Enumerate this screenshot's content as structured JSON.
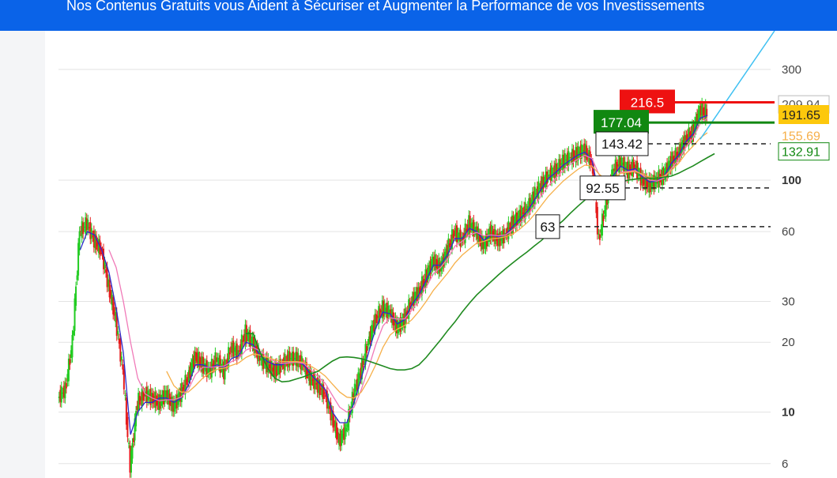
{
  "banner": {
    "text": "Nos Contenus Gratuits vous Aident à Sécuriser et Augmenter la Performance de vos Investissements"
  },
  "colors": {
    "banner": "#0a63e8",
    "up_candle": "#22cc22",
    "down_candle": "#e51b1b",
    "ma_fast": "#2b2bcc",
    "ma_pink": "#f07ab8",
    "ma_orange": "#f6b04a",
    "ma_green": "#1f8a1f",
    "trend_line": "#3ec0f2",
    "resistance": "#ee1111",
    "support": "#118811"
  },
  "chart_data": {
    "type": "line",
    "scale": "log",
    "ylim": [
      5.2,
      440
    ],
    "yticks": [
      {
        "value": 300,
        "label": "300",
        "bold": false
      },
      {
        "value": 100,
        "label": "100",
        "bold": true
      },
      {
        "value": 60,
        "label": "60",
        "bold": false
      },
      {
        "value": 30,
        "label": "30",
        "bold": false
      },
      {
        "value": 20,
        "label": "20",
        "bold": false
      },
      {
        "value": 10,
        "label": "10",
        "bold": true
      },
      {
        "value": 6,
        "label": "6",
        "bold": false
      }
    ],
    "series": [
      {
        "key": "price",
        "values": [
          11.5,
          12.5,
          20,
          60,
          65,
          55,
          50,
          35,
          25,
          15,
          5.8,
          11,
          12,
          11.5,
          11,
          12,
          10.5,
          12,
          14,
          17.5,
          16,
          15,
          17,
          15,
          19,
          18,
          22,
          20,
          17,
          16,
          15,
          16,
          17,
          17,
          16,
          14,
          13,
          12,
          9.5,
          7.5,
          8.5,
          12,
          15,
          20,
          25,
          28,
          27,
          23,
          25,
          30,
          33,
          38,
          45,
          42,
          50,
          60,
          55,
          65,
          60,
          52,
          60,
          55,
          58,
          65,
          70,
          75,
          85,
          95,
          105,
          110,
          120,
          125,
          130,
          135,
          120,
          55,
          80,
          110,
          120,
          110,
          115,
          100,
          95,
          100,
          105,
          120,
          130,
          150,
          160,
          200,
          195
        ]
      },
      {
        "key": "ma_fast",
        "values": [
          null,
          null,
          null,
          50,
          60,
          58,
          50,
          40,
          28,
          18,
          8,
          10,
          11,
          11,
          11.5,
          11.5,
          11,
          11.5,
          13,
          16,
          16,
          15.5,
          16,
          15.5,
          17,
          17.5,
          20,
          19.5,
          17.5,
          16.5,
          16,
          16,
          16.5,
          16.5,
          16,
          14.5,
          13.5,
          12.5,
          10,
          9,
          9,
          11,
          14,
          18,
          23,
          27,
          26.5,
          24,
          25,
          29,
          32,
          37,
          43,
          43,
          48,
          56,
          56,
          62,
          60,
          55,
          58,
          57,
          58,
          63,
          68,
          73,
          82,
          92,
          102,
          108,
          116,
          122,
          128,
          132,
          122,
          85,
          88,
          105,
          115,
          110,
          112,
          103,
          98,
          99,
          104,
          118,
          128,
          146,
          158,
          185,
          190
        ]
      },
      {
        "key": "ma_pink",
        "values": [
          null,
          null,
          null,
          null,
          null,
          null,
          null,
          50,
          42,
          30,
          20,
          14,
          12,
          11.5,
          11.2,
          11.3,
          11.3,
          11.6,
          12.5,
          14.5,
          15.6,
          15.6,
          15.7,
          15.8,
          16.5,
          17,
          18.5,
          19,
          18.3,
          17.3,
          16.5,
          16.2,
          16.3,
          16.4,
          16.2,
          15.2,
          14.2,
          13.3,
          11.8,
          10.5,
          10,
          10.5,
          12.5,
          15.5,
          19.5,
          23.5,
          25.5,
          25.2,
          25.2,
          27.5,
          30.5,
          34.5,
          39.5,
          42,
          46,
          52,
          54.5,
          58,
          59.5,
          57.5,
          58,
          57.5,
          58,
          61,
          65,
          70,
          77,
          86,
          95,
          102,
          110,
          117,
          123,
          128,
          124,
          105,
          95,
          100,
          108,
          109,
          110,
          105,
          100,
          99,
          102,
          112,
          122,
          138,
          152,
          175,
          185
        ]
      },
      {
        "key": "ma_orange",
        "values": [
          null,
          null,
          null,
          null,
          null,
          null,
          null,
          null,
          null,
          null,
          null,
          null,
          null,
          null,
          null,
          15,
          13,
          12.2,
          12.2,
          13,
          14,
          14.8,
          15.3,
          15.5,
          15.9,
          16.3,
          17.2,
          17.8,
          17.6,
          17.2,
          16.8,
          16.5,
          16.5,
          16.5,
          16.4,
          15.8,
          15.1,
          14.3,
          13.2,
          12.2,
          11.6,
          11.5,
          12.2,
          13.8,
          16,
          19,
          21.5,
          22.8,
          23.6,
          25,
          27.2,
          30,
          33.5,
          36.5,
          39.8,
          44,
          47.5,
          50.5,
          53.5,
          54.5,
          55.8,
          56.2,
          57,
          58.5,
          61.5,
          65.5,
          71,
          78,
          85.5,
          92,
          99,
          105,
          111,
          116,
          115,
          106,
          100,
          102,
          107,
          108,
          109,
          106,
          103,
          102,
          104,
          110,
          118,
          130,
          140,
          152,
          160
        ]
      },
      {
        "key": "ma_green",
        "values": [
          null,
          null,
          null,
          null,
          null,
          null,
          null,
          null,
          null,
          null,
          null,
          null,
          null,
          null,
          null,
          null,
          null,
          null,
          null,
          null,
          null,
          null,
          null,
          null,
          null,
          null,
          21.8,
          21.8,
          18,
          15.5,
          14,
          13.5,
          13.6,
          13.9,
          14.2,
          14.6,
          15,
          15.8,
          16.6,
          17.2,
          17.3,
          17.2,
          17,
          16.6,
          16.2,
          15.8,
          15.4,
          15.2,
          15.2,
          15.4,
          16,
          17.2,
          18.8,
          20.5,
          22.5,
          24.5,
          27,
          29.5,
          32,
          34.2,
          36.5,
          39,
          41.5,
          44,
          46.5,
          49,
          52,
          55,
          59,
          63,
          67,
          72,
          77,
          82,
          87,
          90,
          93,
          96,
          98,
          100,
          101,
          102,
          102,
          102,
          103,
          104,
          107,
          111,
          115,
          120,
          125,
          130
        ]
      }
    ],
    "levels": [
      {
        "value": 216.5,
        "label": "216.5",
        "style": "resistance"
      },
      {
        "value": 177.04,
        "label": "177.04",
        "style": "support"
      },
      {
        "value": 143.42,
        "label": "143.42",
        "style": "dashed"
      },
      {
        "value": 92.55,
        "label": "92.55",
        "style": "dashed"
      },
      {
        "value": 63,
        "label": "63",
        "style": "dashed"
      }
    ],
    "right_tags": [
      {
        "value": 212,
        "label": "209.94",
        "style": "partial"
      },
      {
        "value": 191.65,
        "label": "191.65",
        "style": "yellow"
      },
      {
        "value": 155.69,
        "label": "155.69",
        "style": "orange_text"
      },
      {
        "value": 132.91,
        "label": "132.91",
        "style": "green_outline"
      }
    ],
    "trend_line": {
      "from": 150,
      "to": 440
    }
  }
}
